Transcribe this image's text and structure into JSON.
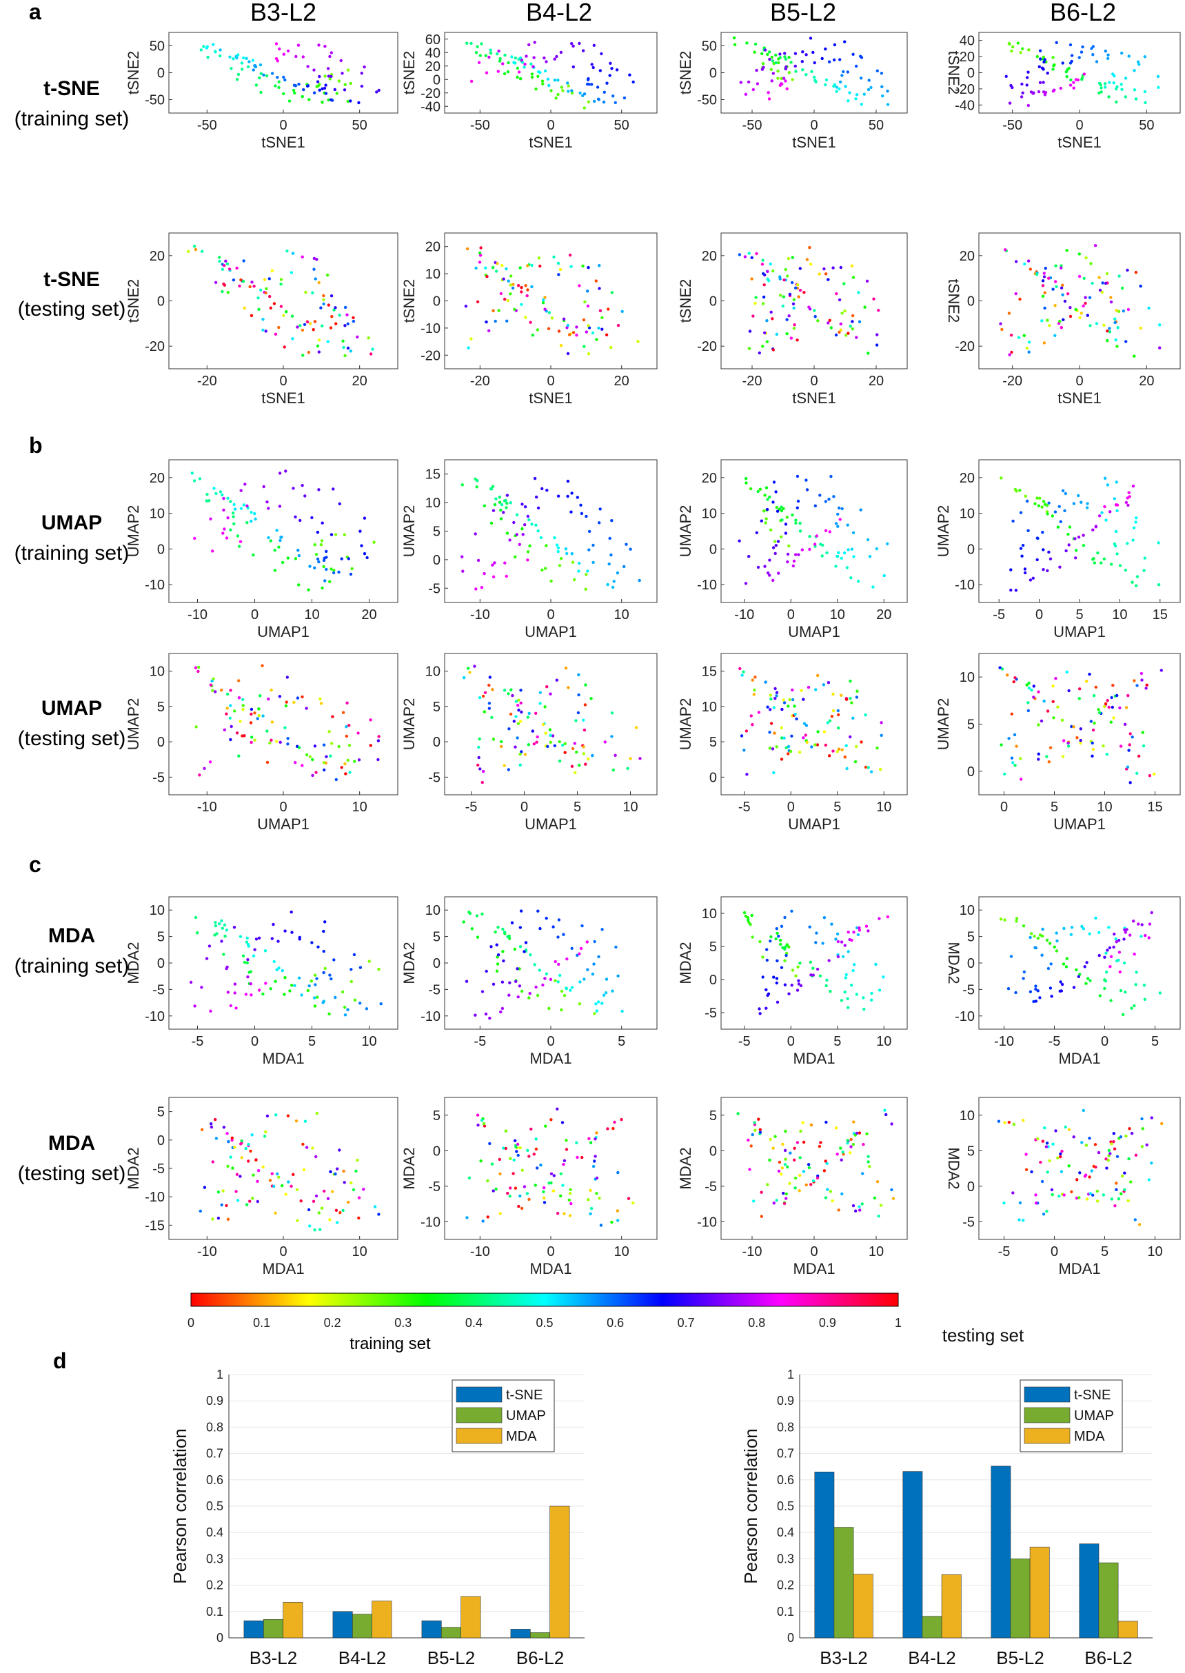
{
  "panel_letters": [
    "a",
    "b",
    "c",
    "d"
  ],
  "columns": [
    "B3-L2",
    "B4-L2",
    "B5-L2",
    "B6-L2"
  ],
  "rows": [
    {
      "method": "t-SNE",
      "set": "(training set)",
      "xlabel": "tSNE1",
      "ylabel": "tSNE2",
      "plots": [
        {
          "xticks": [
            "-50",
            "0",
            "50"
          ],
          "yticks": [
            "50",
            "0",
            "-50"
          ],
          "ylabel_flip": false
        },
        {
          "xticks": [
            "-50",
            "0",
            "50"
          ],
          "yticks": [
            "60",
            "40",
            "20",
            "0",
            "-20",
            "-40"
          ],
          "ylabel_flip": false
        },
        {
          "xticks": [
            "-50",
            "0",
            "50"
          ],
          "yticks": [
            "50",
            "0",
            "-50"
          ],
          "ylabel_flip": false
        },
        {
          "xticks": [
            "-50",
            "0",
            "50"
          ],
          "yticks": [
            "40",
            "20",
            "0",
            "-20",
            "-40"
          ],
          "ylabel_flip": true
        }
      ]
    },
    {
      "method": "t-SNE",
      "set": "(testing set)",
      "xlabel": "tSNE1",
      "ylabel": "tSNE2",
      "plots": [
        {
          "xticks": [
            "-20",
            "0",
            "20"
          ],
          "yticks": [
            "20",
            "0",
            "-20"
          ],
          "ylabel_flip": false
        },
        {
          "xticks": [
            "-20",
            "0",
            "20"
          ],
          "yticks": [
            "20",
            "10",
            "0",
            "-10",
            "-20"
          ],
          "ylabel_flip": false
        },
        {
          "xticks": [
            "-20",
            "0",
            "20"
          ],
          "yticks": [
            "20",
            "0",
            "-20"
          ],
          "ylabel_flip": false
        },
        {
          "xticks": [
            "-20",
            "0",
            "20"
          ],
          "yticks": [
            "20",
            "0",
            "-20"
          ],
          "ylabel_flip": true
        }
      ]
    },
    {
      "method": "UMAP",
      "set": "(training set)",
      "xlabel": "UMAP1",
      "ylabel": "UMAP2",
      "plots": [
        {
          "xticks": [
            "-10",
            "0",
            "10",
            "20"
          ],
          "yticks": [
            "20",
            "10",
            "0",
            "-10"
          ],
          "ylabel_flip": false
        },
        {
          "xticks": [
            "-10",
            "0",
            "10"
          ],
          "yticks": [
            "15",
            "10",
            "5",
            "0",
            "-5"
          ],
          "ylabel_flip": false
        },
        {
          "xticks": [
            "-10",
            "0",
            "10",
            "20"
          ],
          "yticks": [
            "20",
            "10",
            "0",
            "-10"
          ],
          "ylabel_flip": false
        },
        {
          "xticks": [
            "-5",
            "0",
            "5",
            "10",
            "15"
          ],
          "yticks": [
            "20",
            "10",
            "0",
            "-10"
          ],
          "ylabel_flip": false
        }
      ]
    },
    {
      "method": "UMAP",
      "set": "(testing set)",
      "xlabel": "UMAP1",
      "ylabel": "UMAP2",
      "plots": [
        {
          "xticks": [
            "-10",
            "0",
            "10"
          ],
          "yticks": [
            "10",
            "5",
            "0",
            "-5"
          ],
          "ylabel_flip": false
        },
        {
          "xticks": [
            "-5",
            "0",
            "5",
            "10"
          ],
          "yticks": [
            "10",
            "5",
            "0",
            "-5"
          ],
          "ylabel_flip": false
        },
        {
          "xticks": [
            "-5",
            "0",
            "5",
            "10"
          ],
          "yticks": [
            "15",
            "10",
            "5",
            "0"
          ],
          "ylabel_flip": false
        },
        {
          "xticks": [
            "0",
            "5",
            "10",
            "15"
          ],
          "yticks": [
            "10",
            "5",
            "0"
          ],
          "ylabel_flip": false
        }
      ]
    },
    {
      "method": "MDA",
      "set": "(training set)",
      "xlabel": "MDA1",
      "ylabel": "MDA2",
      "plots": [
        {
          "xticks": [
            "-5",
            "0",
            "5",
            "10"
          ],
          "yticks": [
            "10",
            "5",
            "0",
            "-5",
            "-10"
          ],
          "ylabel_flip": false
        },
        {
          "xticks": [
            "-5",
            "0",
            "5"
          ],
          "yticks": [
            "10",
            "5",
            "0",
            "-5",
            "-10"
          ],
          "ylabel_flip": false
        },
        {
          "xticks": [
            "-5",
            "0",
            "5",
            "10"
          ],
          "yticks": [
            "10",
            "5",
            "0",
            "-5"
          ],
          "ylabel_flip": false
        },
        {
          "xticks": [
            "-10",
            "-5",
            "0",
            "5"
          ],
          "yticks": [
            "10",
            "5",
            "0",
            "-5",
            "-10"
          ],
          "ylabel_flip": true
        }
      ]
    },
    {
      "method": "MDA",
      "set": "(testing set)",
      "xlabel": "MDA1",
      "ylabel": "MDA2",
      "plots": [
        {
          "xticks": [
            "-10",
            "0",
            "10"
          ],
          "yticks": [
            "5",
            "0",
            "-5",
            "-10",
            "-15"
          ],
          "ylabel_flip": false
        },
        {
          "xticks": [
            "-10",
            "0",
            "10"
          ],
          "yticks": [
            "5",
            "0",
            "-5",
            "-10"
          ],
          "ylabel_flip": false
        },
        {
          "xticks": [
            "-10",
            "0",
            "10"
          ],
          "yticks": [
            "5",
            "0",
            "-5",
            "-10"
          ],
          "ylabel_flip": false
        },
        {
          "xticks": [
            "-5",
            "0",
            "5",
            "10"
          ],
          "yticks": [
            "10",
            "5",
            "0",
            "-5"
          ],
          "ylabel_flip": true
        }
      ]
    }
  ],
  "colorbar": {
    "ticks": [
      "0",
      "0.1",
      "0.2",
      "0.3",
      "0.4",
      "0.5",
      "0.6",
      "0.7",
      "0.8",
      "0.9",
      "1"
    ],
    "label": "training set"
  },
  "chart_data": [
    {
      "type": "bar",
      "title": "",
      "xlabel": "",
      "ylabel": "Pearson correlation",
      "ylim": [
        0,
        1
      ],
      "yticks": [
        "0",
        "0.1",
        "0.2",
        "0.3",
        "0.4",
        "0.5",
        "0.6",
        "0.7",
        "0.8",
        "0.9",
        "1"
      ],
      "categories": [
        "B3-L2",
        "B4-L2",
        "B5-L2",
        "B6-L2"
      ],
      "legend_position": "top-right",
      "series": [
        {
          "name": "t-SNE",
          "color": "#0072BD",
          "values": [
            0.065,
            0.1,
            0.065,
            0.033
          ]
        },
        {
          "name": "UMAP",
          "color": "#77AC30",
          "values": [
            0.07,
            0.09,
            0.04,
            0.02
          ]
        },
        {
          "name": "MDA",
          "color": "#EDB120",
          "values": [
            0.135,
            0.14,
            0.157,
            0.5
          ]
        }
      ]
    },
    {
      "type": "bar",
      "title": "testing set",
      "xlabel": "",
      "ylabel": "Pearson correlation",
      "ylim": [
        0,
        1
      ],
      "yticks": [
        "0",
        "0.1",
        "0.2",
        "0.3",
        "0.4",
        "0.5",
        "0.6",
        "0.7",
        "0.8",
        "0.9",
        "1"
      ],
      "categories": [
        "B3-L2",
        "B4-L2",
        "B5-L2",
        "B6-L2"
      ],
      "legend_position": "top-right",
      "series": [
        {
          "name": "t-SNE",
          "color": "#0072BD",
          "values": [
            0.63,
            0.632,
            0.652,
            0.357
          ]
        },
        {
          "name": "UMAP",
          "color": "#77AC30",
          "values": [
            0.42,
            0.082,
            0.3,
            0.285
          ]
        },
        {
          "name": "MDA",
          "color": "#EDB120",
          "values": [
            0.242,
            0.24,
            0.345,
            0.063
          ]
        }
      ]
    }
  ]
}
